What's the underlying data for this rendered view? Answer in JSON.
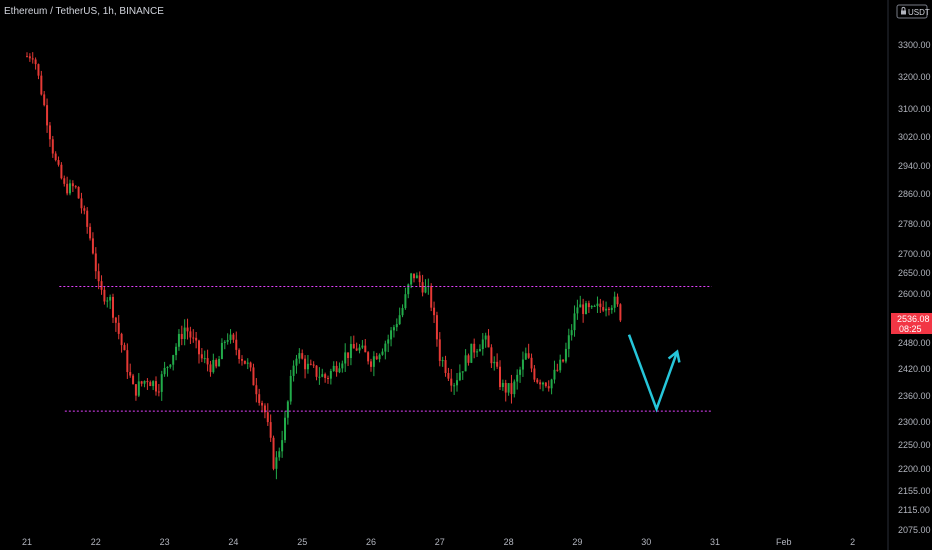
{
  "header": {
    "title": "Ethereum / TetherUS, 1h, BINANCE"
  },
  "price_scale": {
    "currency_label": "USDT",
    "currency_icon": "lock-icon"
  },
  "last_price": {
    "value": "2536.08",
    "countdown": "08:25",
    "color": "#f23645"
  },
  "colors": {
    "background": "#000000",
    "up": "#22ab4a",
    "down": "#e53935",
    "zone_line": "#e040fb",
    "arrow": "#26c6da",
    "text": "#b2b5be"
  },
  "chart_data": {
    "type": "candlestick",
    "title": "Ethereum / TetherUS, 1h, BINANCE",
    "y_axis": {
      "side": "right",
      "ticks": [
        "3300.00",
        "3200.00",
        "3100.00",
        "3020.00",
        "2940.00",
        "2860.00",
        "2780.00",
        "2700.00",
        "2650.00",
        "2600.00",
        "2540.00",
        "2480.00",
        "2420.00",
        "2360.00",
        "2300.00",
        "2250.00",
        "2200.00",
        "2155.00",
        "2115.00",
        "2075.00"
      ],
      "range": [
        2075,
        3330
      ]
    },
    "x_axis": {
      "ticks": [
        "21",
        "22",
        "23",
        "24",
        "25",
        "26",
        "27",
        "28",
        "29",
        "30",
        "31",
        "Feb",
        "2"
      ],
      "unit": "day"
    },
    "price_path": [
      {
        "x": 21.0,
        "y": 3265
      },
      {
        "x": 21.1,
        "y": 3270
      },
      {
        "x": 21.25,
        "y": 3110
      },
      {
        "x": 21.4,
        "y": 2960
      },
      {
        "x": 21.55,
        "y": 2875
      },
      {
        "x": 21.7,
        "y": 2880
      },
      {
        "x": 21.85,
        "y": 2790
      },
      {
        "x": 21.95,
        "y": 2720
      },
      {
        "x": 22.05,
        "y": 2605
      },
      {
        "x": 22.2,
        "y": 2590
      },
      {
        "x": 22.4,
        "y": 2460
      },
      {
        "x": 22.55,
        "y": 2370
      },
      {
        "x": 22.75,
        "y": 2400
      },
      {
        "x": 22.9,
        "y": 2380
      },
      {
        "x": 23.1,
        "y": 2450
      },
      {
        "x": 23.3,
        "y": 2520
      },
      {
        "x": 23.55,
        "y": 2440
      },
      {
        "x": 23.75,
        "y": 2420
      },
      {
        "x": 23.9,
        "y": 2500
      },
      {
        "x": 24.2,
        "y": 2430
      },
      {
        "x": 24.45,
        "y": 2330
      },
      {
        "x": 24.6,
        "y": 2200
      },
      {
        "x": 24.75,
        "y": 2300
      },
      {
        "x": 24.9,
        "y": 2460
      },
      {
        "x": 25.1,
        "y": 2420
      },
      {
        "x": 25.35,
        "y": 2400
      },
      {
        "x": 25.6,
        "y": 2450
      },
      {
        "x": 25.8,
        "y": 2470
      },
      {
        "x": 26.0,
        "y": 2440
      },
      {
        "x": 26.25,
        "y": 2490
      },
      {
        "x": 26.45,
        "y": 2560
      },
      {
        "x": 26.6,
        "y": 2650
      },
      {
        "x": 26.7,
        "y": 2630
      },
      {
        "x": 26.85,
        "y": 2600
      },
      {
        "x": 27.0,
        "y": 2450
      },
      {
        "x": 27.2,
        "y": 2390
      },
      {
        "x": 27.45,
        "y": 2460
      },
      {
        "x": 27.65,
        "y": 2490
      },
      {
        "x": 27.9,
        "y": 2380
      },
      {
        "x": 28.05,
        "y": 2370
      },
      {
        "x": 28.25,
        "y": 2450
      },
      {
        "x": 28.4,
        "y": 2400
      },
      {
        "x": 28.6,
        "y": 2390
      },
      {
        "x": 28.8,
        "y": 2440
      },
      {
        "x": 29.0,
        "y": 2570
      },
      {
        "x": 29.2,
        "y": 2555
      },
      {
        "x": 29.4,
        "y": 2575
      },
      {
        "x": 29.55,
        "y": 2580
      },
      {
        "x": 29.65,
        "y": 2536
      }
    ],
    "support": {
      "value": 2325,
      "x_start": 21.55,
      "x_end": 30.95
    },
    "resistance": {
      "value": 2618,
      "x_start": 21.47,
      "x_end": 30.95
    },
    "projection": [
      {
        "x": 29.75,
        "y": 2500
      },
      {
        "x": 30.15,
        "y": 2330
      },
      {
        "x": 30.45,
        "y": 2460
      }
    ],
    "grid": false,
    "legend": "none"
  }
}
